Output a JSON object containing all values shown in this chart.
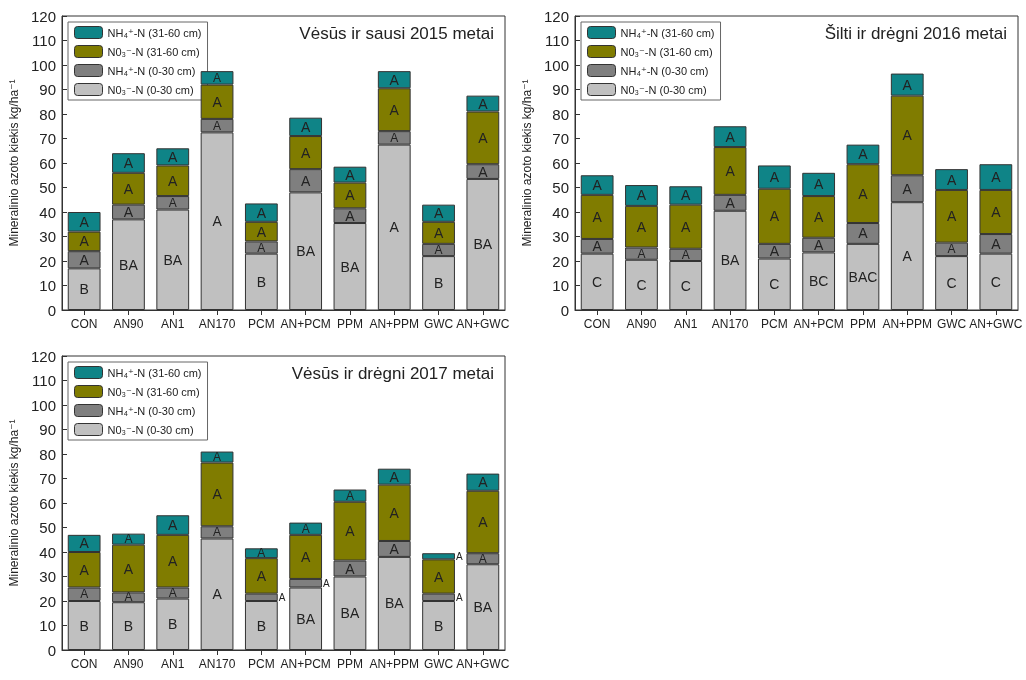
{
  "chart_data": [
    {
      "type": "bar",
      "stacked": true,
      "title": "Vėsūs ir sausi 2015 metai",
      "ylabel": "Mineralinio azoto kiekis kg/ha⁻¹",
      "categories": [
        "CON",
        "AN90",
        "AN1",
        "AN170",
        "PCM",
        "AN+PCM",
        "PPM",
        "AN+PPM",
        "GWC",
        "AN+GWC"
      ],
      "ylim": [
        0,
        120
      ],
      "yticks": [
        0,
        10,
        20,
        30,
        40,
        50,
        60,
        70,
        80,
        90,
        100,
        110,
        120
      ],
      "grid": false,
      "legend": "top left",
      "series": [
        {
          "name": "N0₃⁻-N (0-30 cm)",
          "color": "#c0c0c0",
          "values": [
            17,
            37,
            41,
            72.5,
            23,
            48,
            35.5,
            67.5,
            22,
            53.5
          ],
          "value_labels": [
            "B",
            "BA",
            "BA",
            "A",
            "B",
            "BA",
            "BA",
            "A",
            "B",
            "BA"
          ]
        },
        {
          "name": "NH₄⁺-N (0-30 cm)",
          "color": "#7f7f7f",
          "values": [
            7,
            6,
            5.5,
            5.5,
            5,
            9.5,
            6,
            5.5,
            5,
            6
          ],
          "value_labels": [
            "A",
            "A",
            "A",
            "A",
            "A",
            "A",
            "A",
            "A",
            "A",
            "A"
          ]
        },
        {
          "name": "N0₃⁻-N (31-60 cm)",
          "color": "#807c00",
          "values": [
            8,
            13,
            12.5,
            14,
            8,
            13.5,
            10.5,
            17.5,
            9,
            21.5
          ],
          "value_labels": [
            "A",
            "A",
            "A",
            "A",
            "A",
            "A",
            "A",
            "A",
            "A",
            "A"
          ]
        },
        {
          "name": "NH₄⁺-N (31-60 cm)",
          "color": "#0f8487",
          "values": [
            8,
            8,
            7,
            5.5,
            7.5,
            7.5,
            6.5,
            7,
            7,
            6.5
          ],
          "value_labels": [
            "A",
            "A",
            "A",
            "A",
            "A",
            "A",
            "A",
            "A",
            "A",
            "A"
          ]
        }
      ]
    },
    {
      "type": "bar",
      "stacked": true,
      "title": "Šilti ir drėgni 2016 metai",
      "ylabel": "Mineralinio azoto kiekis kg/ha⁻¹",
      "categories": [
        "CON",
        "AN90",
        "AN1",
        "AN170",
        "PCM",
        "AN+PCM",
        "PPM",
        "AN+PPM",
        "GWC",
        "AN+GWC"
      ],
      "ylim": [
        0,
        120
      ],
      "yticks": [
        0,
        10,
        20,
        30,
        40,
        50,
        60,
        70,
        80,
        90,
        100,
        110,
        120
      ],
      "grid": false,
      "legend": "top left",
      "series": [
        {
          "name": "N0₃⁻-N (0-30 cm)",
          "color": "#c0c0c0",
          "values": [
            23,
            20.5,
            20,
            40.5,
            21,
            23.5,
            27,
            44,
            22,
            23
          ],
          "value_labels": [
            "C",
            "C",
            "C",
            "BA",
            "C",
            "BC",
            "BAC",
            "A",
            "C",
            "C"
          ]
        },
        {
          "name": "NH₄⁺-N (0-30 cm)",
          "color": "#7f7f7f",
          "values": [
            6,
            5,
            5,
            6.5,
            6,
            6,
            8.5,
            11,
            5.5,
            8
          ],
          "value_labels": [
            "A",
            "A",
            "A",
            "A",
            "A",
            "A",
            "A",
            "A",
            "A",
            "A"
          ]
        },
        {
          "name": "N0₃⁻-N (31-60 cm)",
          "color": "#807c00",
          "values": [
            18,
            17,
            18,
            19.5,
            22.5,
            17,
            24,
            32.5,
            21.5,
            18
          ],
          "value_labels": [
            "A",
            "A",
            "A",
            "A",
            "A",
            "A",
            "A",
            "A",
            "A",
            "A"
          ]
        },
        {
          "name": "NH₄⁺-N (31-60 cm)",
          "color": "#0f8487",
          "values": [
            8,
            8.5,
            7.5,
            8.5,
            9.5,
            9.5,
            8,
            9,
            8.5,
            10.5
          ],
          "value_labels": [
            "A",
            "A",
            "A",
            "A",
            "A",
            "A",
            "A",
            "A",
            "A",
            "A"
          ]
        }
      ]
    },
    {
      "type": "bar",
      "stacked": true,
      "title": "Vėsūs ir drėgni 2017 metai",
      "ylabel": "Mineralinio azoto kiekis kg/ha⁻¹",
      "categories": [
        "CON",
        "AN90",
        "AN1",
        "AN170",
        "PCM",
        "AN+PCM",
        "PPM",
        "AN+PPM",
        "GWC",
        "AN+GWC"
      ],
      "ylim": [
        0,
        120
      ],
      "yticks": [
        0,
        10,
        20,
        30,
        40,
        50,
        60,
        70,
        80,
        90,
        100,
        110,
        120
      ],
      "grid": false,
      "legend": "top left",
      "series": [
        {
          "name": "N0₃⁻-N (0-30 cm)",
          "color": "#c0c0c0",
          "values": [
            20,
            19.5,
            21,
            45.5,
            20,
            25.5,
            30,
            38,
            20,
            35
          ],
          "value_labels": [
            "B",
            "B",
            "B",
            "A",
            "B",
            "BA",
            "BA",
            "BA",
            "B",
            "BA"
          ]
        },
        {
          "name": "NH₄⁺-N (0-30 cm)",
          "color": "#7f7f7f",
          "values": [
            5.5,
            4,
            4.5,
            5,
            3,
            3.5,
            6.5,
            6.5,
            3,
            4.5
          ],
          "value_labels": [
            "A",
            "A",
            "A",
            "A",
            "A",
            "A",
            "A",
            "A",
            "A",
            "A"
          ]
        },
        {
          "name": "N0₃⁻-N (31-60 cm)",
          "color": "#807c00",
          "values": [
            14.5,
            19.5,
            21.5,
            26,
            14.5,
            18,
            24,
            23,
            14,
            25.5
          ],
          "value_labels": [
            "A",
            "A",
            "A",
            "A",
            "A",
            "A",
            "A",
            "A",
            "A",
            "A"
          ]
        },
        {
          "name": "NH₄⁺-N (31-60 cm)",
          "color": "#0f8487",
          "values": [
            7,
            4.5,
            8,
            4.5,
            4,
            5,
            5,
            6.5,
            2.5,
            7
          ],
          "value_labels": [
            "A",
            "A",
            "A",
            "A",
            "A",
            "A",
            "A",
            "A",
            "A",
            "A"
          ]
        }
      ]
    }
  ]
}
